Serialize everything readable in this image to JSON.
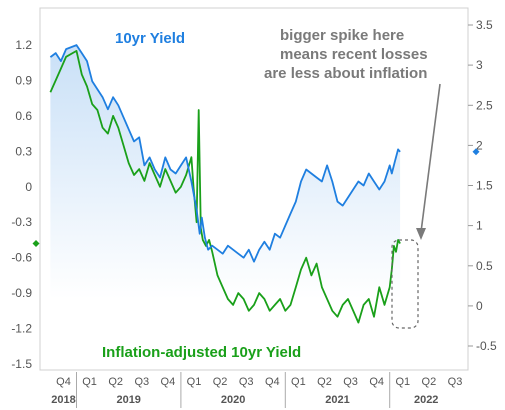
{
  "chart_data": {
    "type": "line",
    "title": "",
    "xlabel": "",
    "ylabel": "",
    "y_left": {
      "range": [
        -1.5,
        1.35
      ],
      "ticks": [
        "1.2",
        "0.9",
        "0.6",
        "0.3",
        "0",
        "-0.3",
        "-0.6",
        "-0.9",
        "-1.2",
        "-1.5"
      ],
      "values": [
        1.2,
        0.9,
        0.6,
        0.3,
        0,
        -0.3,
        -0.6,
        -0.9,
        -1.2,
        -1.5
      ]
    },
    "y_right": {
      "range": [
        -0.6,
        3.6
      ],
      "ticks": [
        "3.5",
        "3",
        "2.5",
        "2",
        "1.5",
        "1",
        "0.5",
        "0",
        "-0.5"
      ],
      "values": [
        3.5,
        3,
        2.5,
        2,
        1.5,
        1,
        0.5,
        0,
        -0.5
      ]
    },
    "x_quarters": [
      "Q4",
      "Q1",
      "Q2",
      "Q3",
      "Q4",
      "Q1",
      "Q2",
      "Q3",
      "Q4",
      "Q1",
      "Q2",
      "Q3",
      "Q4",
      "Q1",
      "Q2",
      "Q3"
    ],
    "x_years": [
      "2018",
      "2019",
      "2020",
      "2021",
      "2022"
    ],
    "series": [
      {
        "name": "10yr Yield",
        "axis": "right",
        "color": "#1f7fe0",
        "x": [
          2018.75,
          2018.8,
          2018.85,
          2018.9,
          2019.0,
          2019.05,
          2019.1,
          2019.15,
          2019.2,
          2019.25,
          2019.3,
          2019.35,
          2019.4,
          2019.45,
          2019.5,
          2019.55,
          2019.6,
          2019.65,
          2019.7,
          2019.75,
          2019.8,
          2019.85,
          2019.9,
          2019.95,
          2020.0,
          2020.05,
          2020.1,
          2020.15,
          2020.18,
          2020.2,
          2020.23,
          2020.26,
          2020.3,
          2020.35,
          2020.4,
          2020.45,
          2020.5,
          2020.55,
          2020.6,
          2020.65,
          2020.7,
          2020.75,
          2020.8,
          2020.85,
          2020.9,
          2020.95,
          2021.0,
          2021.05,
          2021.1,
          2021.15,
          2021.2,
          2021.25,
          2021.3,
          2021.35,
          2021.4,
          2021.45,
          2021.5,
          2021.55,
          2021.6,
          2021.65,
          2021.7,
          2021.75,
          2021.8,
          2021.85,
          2021.9,
          2021.95,
          2022.0,
          2022.02,
          2022.05,
          2022.08,
          2022.1
        ],
        "y": [
          3.1,
          3.15,
          3.05,
          3.2,
          3.25,
          3.15,
          3.05,
          2.8,
          2.7,
          2.6,
          2.45,
          2.6,
          2.5,
          2.35,
          2.2,
          2.05,
          2.1,
          1.75,
          1.85,
          1.7,
          1.6,
          1.85,
          1.7,
          1.65,
          1.75,
          1.85,
          1.55,
          1.2,
          0.9,
          1.1,
          0.85,
          0.7,
          0.75,
          0.7,
          0.65,
          0.75,
          0.7,
          0.65,
          0.6,
          0.7,
          0.55,
          0.7,
          0.8,
          0.7,
          0.9,
          0.85,
          1.0,
          1.15,
          1.3,
          1.55,
          1.7,
          1.65,
          1.6,
          1.55,
          1.75,
          1.55,
          1.3,
          1.25,
          1.35,
          1.45,
          1.55,
          1.5,
          1.65,
          1.55,
          1.45,
          1.55,
          1.75,
          1.65,
          1.8,
          1.95,
          1.92
        ]
      },
      {
        "name": "Inflation-adjusted 10yr Yield",
        "axis": "left",
        "color": "#1aa01a",
        "x": [
          2018.75,
          2018.8,
          2018.85,
          2018.9,
          2019.0,
          2019.05,
          2019.1,
          2019.15,
          2019.2,
          2019.25,
          2019.3,
          2019.35,
          2019.4,
          2019.45,
          2019.5,
          2019.55,
          2019.6,
          2019.65,
          2019.7,
          2019.75,
          2019.8,
          2019.85,
          2019.9,
          2019.95,
          2020.0,
          2020.05,
          2020.1,
          2020.12,
          2020.15,
          2020.17,
          2020.19,
          2020.21,
          2020.24,
          2020.27,
          2020.3,
          2020.35,
          2020.4,
          2020.45,
          2020.5,
          2020.55,
          2020.6,
          2020.65,
          2020.7,
          2020.75,
          2020.8,
          2020.85,
          2020.9,
          2020.95,
          2021.0,
          2021.05,
          2021.1,
          2021.15,
          2021.2,
          2021.25,
          2021.3,
          2021.35,
          2021.4,
          2021.45,
          2021.5,
          2021.55,
          2021.6,
          2021.65,
          2021.7,
          2021.75,
          2021.8,
          2021.85,
          2021.9,
          2021.95,
          2022.0,
          2022.02,
          2022.04,
          2022.06,
          2022.08,
          2022.1
        ],
        "y": [
          0.8,
          0.9,
          1.0,
          1.1,
          1.15,
          0.95,
          0.85,
          0.7,
          0.65,
          0.5,
          0.45,
          0.6,
          0.5,
          0.35,
          0.2,
          0.1,
          0.15,
          0.05,
          0.2,
          0.1,
          0.0,
          0.15,
          0.05,
          -0.05,
          0.0,
          0.1,
          0.25,
          0.0,
          -0.3,
          0.65,
          -0.35,
          -0.45,
          -0.5,
          -0.45,
          -0.55,
          -0.75,
          -0.85,
          -0.95,
          -1.0,
          -0.9,
          -0.95,
          -1.05,
          -1.0,
          -0.9,
          -0.95,
          -1.05,
          -1.0,
          -0.95,
          -1.05,
          -1.0,
          -0.85,
          -0.7,
          -0.6,
          -0.75,
          -0.65,
          -0.85,
          -0.95,
          -1.05,
          -1.1,
          -1.0,
          -0.95,
          -1.05,
          -1.15,
          -1.0,
          -0.95,
          -1.1,
          -0.85,
          -1.0,
          -0.85,
          -0.7,
          -0.5,
          -0.55,
          -0.45,
          -0.48
        ]
      }
    ],
    "labels": {
      "blue_series_label": "10yr Yield",
      "green_series_label": "Inflation-adjusted 10yr Yield",
      "annotation": [
        "bigger spike here",
        "means recent losses",
        "are less about inflation"
      ]
    },
    "colors": {
      "blue": "#1f7fe0",
      "green": "#1aa01a",
      "fill_top": "#c9e0f7",
      "fill_bottom": "#ffffff",
      "annotation": "#7a7a7a"
    }
  }
}
